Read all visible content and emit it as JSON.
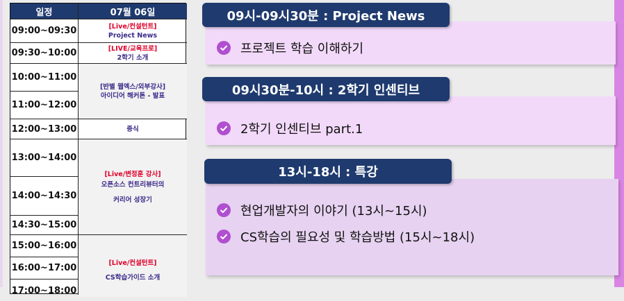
{
  "table": {
    "header_time": "일정",
    "header_date": "07월 06일",
    "times": [
      "09:00~09:30",
      "09:30~10:00",
      "10:00~11:00",
      "11:00~12:00",
      "12:00~13:00",
      "13:00~14:00",
      "14:00~14:30",
      "14:30~15:00",
      "15:00~16:00",
      "16:00~17:00",
      "17:00~18:00"
    ],
    "events": [
      {
        "tag": "[Live/컨설턴트]",
        "desc": "Project News"
      },
      {
        "tag": "[LIVE/교육프로]",
        "desc": "2학기 소개"
      },
      {
        "tag": "[반별 웹엑스/외부강사]",
        "desc": "아이디어 해커톤 - 발표"
      },
      {
        "tag": "",
        "desc": "중식"
      },
      {
        "tag": "[Live/변정훈 강사]",
        "desc": "오픈소스 컨트리뷰터의",
        "desc2": "커리어 성장기"
      },
      {
        "tag": "[Live/컨설턴트]",
        "desc": "CS학습가이드 소개"
      }
    ]
  },
  "sections": [
    {
      "title": "09시-09시30분 : Project News",
      "items": [
        "프로젝트 학습 이해하기"
      ]
    },
    {
      "title": "09시30분-10시 : 2학기 인센티브",
      "items": [
        "2학기 인센티브 part.1"
      ]
    },
    {
      "title": "13시-18시 : 특강",
      "items": [
        "현업개발자의 이야기 (13시~15시)",
        "CS학습의 필요성 및 학습방법 (15시~18시)"
      ]
    }
  ],
  "colors": {
    "header_bg": "#1f3a6e",
    "tag_red": "#e0002a",
    "desc_purple": "#3b2a8a",
    "card_light": "#f2d9f9",
    "card_dark": "#e7d2f1",
    "check_icon": "#b04fd0"
  }
}
